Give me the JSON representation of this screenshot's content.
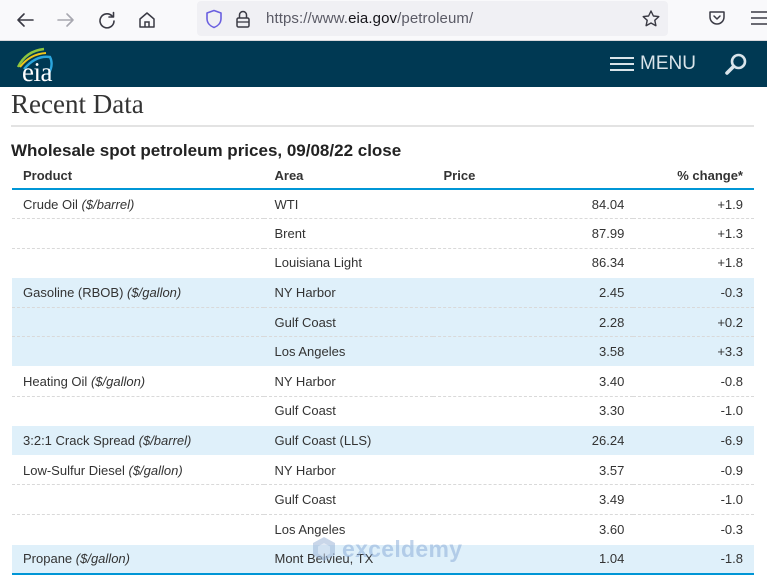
{
  "browser": {
    "url_prefix": "https://www.",
    "url_domain": "eia.gov",
    "url_path": "/petroleum/",
    "icons": [
      "back-icon",
      "forward-icon",
      "reload-icon",
      "home-icon",
      "shield-icon",
      "lock-icon",
      "bookmark-star-icon",
      "pocket-icon",
      "hamburger-menu-icon"
    ]
  },
  "header": {
    "logo_text": "eia",
    "menu_label": "MENU",
    "brand_color": "#003953",
    "accent_color": "#0096d6"
  },
  "page": {
    "title": "Recent Data",
    "section_title": "Wholesale spot petroleum prices, 09/08/22 close"
  },
  "table": {
    "columns": [
      "Product",
      "Area",
      "Price",
      "% change*"
    ],
    "rows": [
      {
        "product": "Crude Oil",
        "unit": "($/barrel)",
        "area": "WTI",
        "price": "84.04",
        "change": "+1.9"
      },
      {
        "product": "",
        "unit": "",
        "area": "Brent",
        "price": "87.99",
        "change": "+1.3"
      },
      {
        "product": "",
        "unit": "",
        "area": "Louisiana Light",
        "price": "86.34",
        "change": "+1.8"
      },
      {
        "product": "Gasoline (RBOB)",
        "unit": "($/gallon)",
        "area": "NY Harbor",
        "price": "2.45",
        "change": "-0.3"
      },
      {
        "product": "",
        "unit": "",
        "area": "Gulf Coast",
        "price": "2.28",
        "change": "+0.2"
      },
      {
        "product": "",
        "unit": "",
        "area": "Los Angeles",
        "price": "3.58",
        "change": "+3.3"
      },
      {
        "product": "Heating Oil",
        "unit": "($/gallon)",
        "area": "NY Harbor",
        "price": "3.40",
        "change": "-0.8"
      },
      {
        "product": "",
        "unit": "",
        "area": "Gulf Coast",
        "price": "3.30",
        "change": "-1.0"
      },
      {
        "product": "3:2:1 Crack Spread",
        "unit": "($/barrel)",
        "area": "Gulf Coast (LLS)",
        "price": "26.24",
        "change": "-6.9"
      },
      {
        "product": "Low-Sulfur Diesel",
        "unit": "($/gallon)",
        "area": "NY Harbor",
        "price": "3.57",
        "change": "-0.9"
      },
      {
        "product": "",
        "unit": "",
        "area": "Gulf Coast",
        "price": "3.49",
        "change": "-1.0"
      },
      {
        "product": "",
        "unit": "",
        "area": "Los Angeles",
        "price": "3.60",
        "change": "-0.3"
      },
      {
        "product": "Propane",
        "unit": "($/gallon)",
        "area": "Mont Belvieu, TX",
        "price": "1.04",
        "change": "-1.8"
      }
    ]
  },
  "watermark": {
    "text": "exceldemy"
  }
}
